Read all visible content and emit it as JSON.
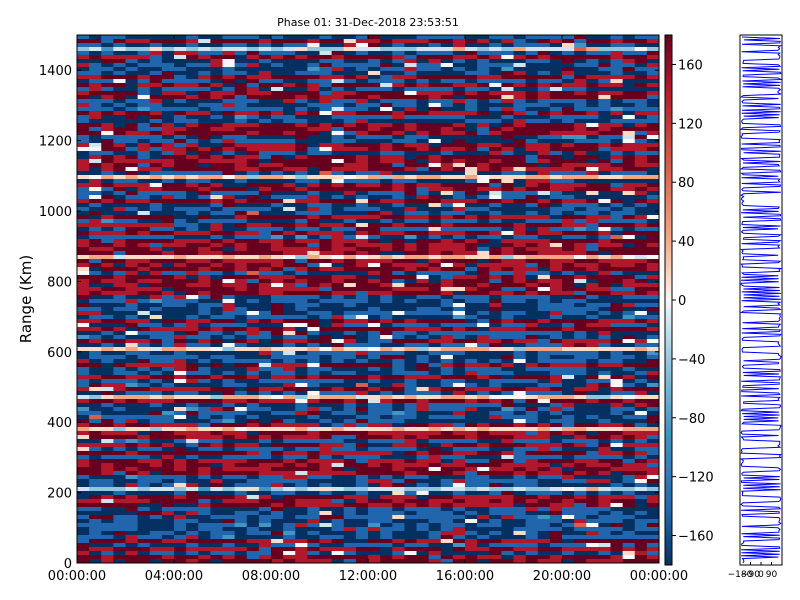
{
  "chart_data": [
    {
      "type": "heatmap",
      "title": "Phase 01: 31-Dec-2018 23:53:51",
      "xlabel": "",
      "ylabel": "Range (Km)",
      "x_ticks": [
        "00:00:00",
        "04:00:00",
        "08:00:00",
        "12:00:00",
        "16:00:00",
        "20:00:00",
        "00:00:00"
      ],
      "x_range": [
        "00:00:00",
        "24:00:00"
      ],
      "y_ticks": [
        0,
        200,
        400,
        600,
        800,
        1000,
        1200,
        1400
      ],
      "ylim": [
        0,
        1500
      ],
      "colormap": "RdBu_r",
      "colorbar": {
        "range": [
          -180,
          180
        ],
        "ticks": [
          160,
          120,
          80,
          40,
          0,
          -40,
          -80,
          -120,
          -160
        ],
        "tick_labels": [
          "160",
          "120",
          "80",
          "40",
          "0",
          "−40",
          "−80",
          "−120",
          "−160"
        ]
      },
      "grid": false,
      "value_pattern": "phase values in degrees varying by range bin and time; predominantly near ±180 (dark red / dark blue horizontal banding)"
    },
    {
      "type": "line",
      "title": "",
      "x_tick_labels": [
        "−180",
        "−90",
        "0",
        "90"
      ],
      "xlim": [
        -180,
        180
      ],
      "ylim": [
        0,
        1500
      ],
      "series_color": "#0000ff"
    }
  ],
  "colors": {
    "deep_red": "#67001f",
    "red": "#b2182b",
    "light_red": "#d6604d",
    "salmon": "#f4a582",
    "pale_red": "#fddbc7",
    "white": "#f7f7f7",
    "pale_blue": "#d1e5f0",
    "light_blue": "#92c5de",
    "blue": "#4393c3",
    "mid_blue": "#2166ac",
    "deep_blue": "#053061",
    "line_blue": "#0000ff"
  }
}
